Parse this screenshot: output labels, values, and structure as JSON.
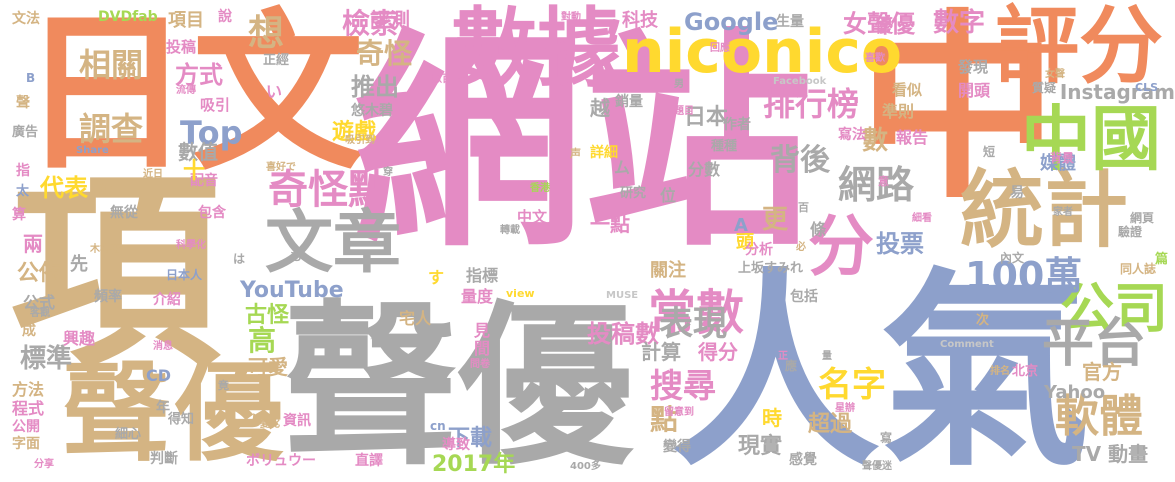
{
  "palette": {
    "salmon": "#f08a5d",
    "pink": "#e48bc4",
    "tan": "#d4b483",
    "gray": "#a9a9a9",
    "blue": "#8da0cb",
    "green": "#a6d854",
    "yellow": "#ffd92f",
    "lightgray": "#c7c7c7"
  },
  "words": [
    {
      "text": "日文",
      "color": "salmon"
    },
    {
      "text": "網站",
      "color": "pink"
    },
    {
      "text": "中",
      "color": "salmon"
    },
    {
      "text": "聲優",
      "color": "gray"
    },
    {
      "text": "人氣",
      "color": "blue"
    },
    {
      "text": "項",
      "color": "tan"
    },
    {
      "text": "數據",
      "color": "pink"
    },
    {
      "text": "niconico",
      "color": "yellow"
    },
    {
      "text": "評分",
      "color": "salmon"
    },
    {
      "text": "統計",
      "color": "tan"
    },
    {
      "text": "聲",
      "color": "tan"
    },
    {
      "text": "優",
      "color": "tan"
    },
    {
      "text": "中國",
      "color": "green"
    },
    {
      "text": "文章",
      "color": "gray"
    },
    {
      "text": "公司",
      "color": "green"
    },
    {
      "text": "平台",
      "color": "gray"
    },
    {
      "text": "軟體",
      "color": "tan"
    },
    {
      "text": "常數",
      "color": "pink"
    },
    {
      "text": "分",
      "color": "pink"
    },
    {
      "text": "100萬",
      "color": "blue"
    },
    {
      "text": "奇怪點",
      "color": "pink"
    },
    {
      "text": "排行榜",
      "color": "pink"
    },
    {
      "text": "表現",
      "color": "gray"
    },
    {
      "text": "網路",
      "color": "gray"
    },
    {
      "text": "搜尋",
      "color": "pink"
    },
    {
      "text": "名字",
      "color": "yellow"
    },
    {
      "text": "相關",
      "color": "tan"
    },
    {
      "text": "調查",
      "color": "tan"
    },
    {
      "text": "Top",
      "color": "blue"
    },
    {
      "text": "檢索",
      "color": "pink"
    },
    {
      "text": "奇怪",
      "color": "tan"
    },
    {
      "text": "想",
      "color": "tan"
    },
    {
      "text": "背後",
      "color": "gray"
    },
    {
      "text": "數字",
      "color": "pink"
    },
    {
      "text": "女聲優",
      "color": "pink"
    },
    {
      "text": "Google",
      "color": "blue"
    },
    {
      "text": "Instagram",
      "color": "gray"
    },
    {
      "text": "YouTube",
      "color": "blue"
    },
    {
      "text": "投稿數",
      "color": "pink"
    },
    {
      "text": "2017年",
      "color": "green"
    },
    {
      "text": "下載",
      "color": "blue"
    },
    {
      "text": "標準",
      "color": "gray"
    },
    {
      "text": "代表",
      "color": "yellow"
    },
    {
      "text": "公佈",
      "color": "tan"
    },
    {
      "text": "方式",
      "color": "pink"
    },
    {
      "text": "推出",
      "color": "gray"
    },
    {
      "text": "遊戲",
      "color": "yellow"
    },
    {
      "text": "日本",
      "color": "gray"
    },
    {
      "text": "投票",
      "color": "blue"
    },
    {
      "text": "數",
      "color": "tan"
    },
    {
      "text": "更",
      "color": "tan"
    },
    {
      "text": "點",
      "color": "tan"
    },
    {
      "text": "高",
      "color": "green"
    },
    {
      "text": "古怪",
      "color": "green"
    },
    {
      "text": "可愛",
      "color": "tan"
    },
    {
      "text": "計算",
      "color": "gray"
    },
    {
      "text": "得分",
      "color": "pink"
    },
    {
      "text": "現實",
      "color": "gray"
    },
    {
      "text": "官方",
      "color": "tan"
    },
    {
      "text": "TV 動畫",
      "color": "gray"
    },
    {
      "text": "Yahoo",
      "color": "gray"
    },
    {
      "text": "超過",
      "color": "tan"
    },
    {
      "text": "時",
      "color": "yellow"
    },
    {
      "text": "評測",
      "color": "pink"
    },
    {
      "text": "科技",
      "color": "pink"
    },
    {
      "text": "項目",
      "color": "tan"
    },
    {
      "text": "投稿",
      "color": "pink"
    },
    {
      "text": "文法",
      "color": "tan"
    },
    {
      "text": "DVDfab",
      "color": "green"
    },
    {
      "text": "數值",
      "color": "gray"
    },
    {
      "text": "吸引",
      "color": "pink"
    },
    {
      "text": "報告",
      "color": "pink"
    },
    {
      "text": "準則",
      "color": "tan"
    },
    {
      "text": "開頭",
      "color": "pink"
    },
    {
      "text": "發現",
      "color": "gray"
    },
    {
      "text": "看似",
      "color": "tan"
    },
    {
      "text": "媒體",
      "color": "blue"
    },
    {
      "text": "越",
      "color": "gray"
    },
    {
      "text": "銷量",
      "color": "gray"
    },
    {
      "text": "作者",
      "color": "gray"
    },
    {
      "text": "種種",
      "color": "gray"
    },
    {
      "text": "詳細",
      "color": "yellow"
    },
    {
      "text": "研究",
      "color": "gray"
    },
    {
      "text": "位",
      "color": "gray"
    },
    {
      "text": "分數",
      "color": "gray"
    },
    {
      "text": "一點",
      "color": "pink"
    },
    {
      "text": "中文",
      "color": "pink"
    },
    {
      "text": "頭",
      "color": "yellow"
    },
    {
      "text": "分析",
      "color": "pink"
    },
    {
      "text": "條",
      "color": "gray"
    },
    {
      "text": "關注",
      "color": "tan"
    },
    {
      "text": "指標",
      "color": "gray"
    },
    {
      "text": "宅人",
      "color": "tan"
    },
    {
      "text": "量度",
      "color": "pink"
    },
    {
      "text": "上坂すみれ",
      "color": "gray"
    },
    {
      "text": "包括",
      "color": "gray"
    },
    {
      "text": "內文",
      "color": "gray"
    },
    {
      "text": "同人誌",
      "color": "tan"
    },
    {
      "text": "網頁",
      "color": "gray"
    },
    {
      "text": "驗證",
      "color": "gray"
    },
    {
      "text": "北京",
      "color": "pink"
    },
    {
      "text": "導致",
      "color": "pink"
    },
    {
      "text": "變得",
      "color": "gray"
    },
    {
      "text": "資訊",
      "color": "pink"
    },
    {
      "text": "判斷",
      "color": "gray"
    },
    {
      "text": "ボリュウー",
      "color": "pink"
    },
    {
      "text": "直譯",
      "color": "pink"
    },
    {
      "text": "感覺",
      "color": "gray"
    },
    {
      "text": "方法",
      "color": "tan"
    },
    {
      "text": "程式",
      "color": "pink"
    },
    {
      "text": "公開",
      "color": "pink"
    },
    {
      "text": "字面",
      "color": "tan"
    },
    {
      "text": "興趣",
      "color": "pink"
    },
    {
      "text": "配音",
      "color": "pink"
    },
    {
      "text": "頻率",
      "color": "gray"
    },
    {
      "text": "介紹",
      "color": "pink"
    },
    {
      "text": "公式",
      "color": "gray"
    },
    {
      "text": "兩",
      "color": "pink"
    },
    {
      "text": "無從",
      "color": "gray"
    },
    {
      "text": "包含",
      "color": "pink"
    },
    {
      "text": "先",
      "color": "gray"
    },
    {
      "text": "廣告",
      "color": "gray"
    },
    {
      "text": "得知",
      "color": "gray"
    },
    {
      "text": "細心",
      "color": "gray"
    },
    {
      "text": "年",
      "color": "gray"
    },
    {
      "text": "CD",
      "color": "blue"
    },
    {
      "text": "見",
      "color": "pink"
    },
    {
      "text": "間",
      "color": "pink"
    },
    {
      "text": "說",
      "color": "pink"
    },
    {
      "text": "正經",
      "color": "gray"
    },
    {
      "text": "悠木碧",
      "color": "gray"
    },
    {
      "text": "生量",
      "color": "gray"
    },
    {
      "text": "質疑",
      "color": "gray"
    },
    {
      "text": "寫法",
      "color": "pink"
    },
    {
      "text": "十",
      "color": "yellow"
    },
    {
      "text": "Share",
      "color": "blue"
    },
    {
      "text": "Facebook",
      "color": "lightgray"
    },
    {
      "text": "CLS",
      "color": "blue"
    },
    {
      "text": "Comment",
      "color": "lightgray"
    },
    {
      "text": "MUSE",
      "color": "lightgray"
    },
    {
      "text": "view",
      "color": "yellow"
    },
    {
      "text": "cn",
      "color": "blue"
    },
    {
      "text": "400多",
      "color": "gray"
    },
    {
      "text": "日本人",
      "color": "blue"
    },
    {
      "text": "木棉花",
      "color": "tan"
    },
    {
      "text": "科學化",
      "color": "pink"
    },
    {
      "text": "香港",
      "color": "green"
    },
    {
      "text": "B",
      "color": "blue"
    },
    {
      "text": "聲",
      "color": "tan"
    },
    {
      "text": "指",
      "color": "pink"
    },
    {
      "text": "太",
      "color": "blue"
    },
    {
      "text": "加",
      "color": "tan"
    },
    {
      "text": "算",
      "color": "pink"
    },
    {
      "text": "成",
      "color": "tan"
    },
    {
      "text": "客觀",
      "color": "gray"
    },
    {
      "text": "分享",
      "color": "pink"
    },
    {
      "text": "流傳",
      "color": "pink"
    },
    {
      "text": "數百",
      "color": "pink"
    },
    {
      "text": "喜歡",
      "color": "pink"
    },
    {
      "text": "回應",
      "color": "pink"
    },
    {
      "text": "題目",
      "color": "pink"
    },
    {
      "text": "男",
      "color": "gray"
    },
    {
      "text": "留意到",
      "color": "pink"
    },
    {
      "text": "變化",
      "color": "tan"
    },
    {
      "text": "吸引到",
      "color": "tan"
    },
    {
      "text": "排名",
      "color": "tan"
    },
    {
      "text": "星辦",
      "color": "pink"
    },
    {
      "text": "聲優迷",
      "color": "gray"
    },
    {
      "text": "易",
      "color": "gray"
    },
    {
      "text": "篇",
      "color": "green"
    },
    {
      "text": "女聲",
      "color": "tan"
    },
    {
      "text": "背景",
      "color": "pink"
    },
    {
      "text": "意",
      "color": "pink"
    },
    {
      "text": "百",
      "color": "gray"
    },
    {
      "text": "次",
      "color": "tan"
    },
    {
      "text": "應",
      "color": "gray"
    },
    {
      "text": "寫",
      "color": "gray"
    },
    {
      "text": "短",
      "color": "gray"
    },
    {
      "text": "對動",
      "color": "pink"
    },
    {
      "text": "消息",
      "color": "pink"
    },
    {
      "text": "問卷",
      "color": "pink"
    },
    {
      "text": "轉載",
      "color": "gray"
    },
    {
      "text": "近日",
      "color": "tan"
    },
    {
      "text": "喜好で",
      "color": "tan"
    },
    {
      "text": "正",
      "color": "pink"
    },
    {
      "text": "量",
      "color": "gray"
    },
    {
      "text": "必",
      "color": "tan"
    },
    {
      "text": "細看",
      "color": "pink"
    },
    {
      "text": "家者",
      "color": "gray"
    },
    {
      "text": "い",
      "color": "pink"
    },
    {
      "text": "す",
      "color": "yellow"
    },
    {
      "text": "ム",
      "color": "gray"
    },
    {
      "text": "は",
      "color": "gray"
    },
    {
      "text": "も",
      "color": "gray"
    },
    {
      "text": "A",
      "color": "blue"
    },
    {
      "text": "声",
      "color": "tan"
    },
    {
      "text": "優",
      "color": "pink"
    },
    {
      "text": "穿",
      "color": "gray"
    },
    {
      "text": "竟",
      "color": "gray"
    }
  ]
}
